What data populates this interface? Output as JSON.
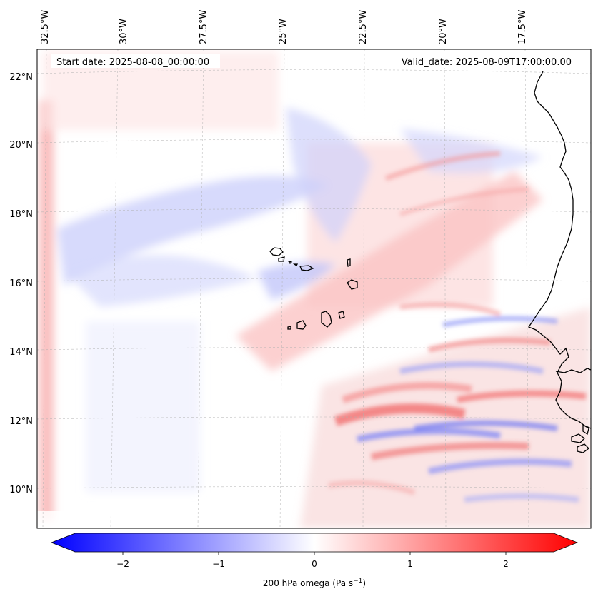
{
  "header": {
    "start_date": "Start date: 2025-08-08_00:00:00",
    "valid_date": "Valid_date: 2025-08-09T17:00:00.00"
  },
  "map": {
    "lon_labels": [
      "32.5°W",
      "30°W",
      "27.5°W",
      "25°W",
      "22.5°W",
      "20°W",
      "17.5°W"
    ],
    "lat_labels": [
      "22°N",
      "20°N",
      "18°N",
      "16°N",
      "14°N",
      "12°N",
      "10°N"
    ]
  },
  "colorbar": {
    "ticks": [
      "−2",
      "−1",
      "0",
      "1",
      "2"
    ],
    "tick_values": [
      -2,
      -1,
      0,
      1,
      2
    ],
    "range": [
      -2.5,
      2.5
    ],
    "label_main": "200 hPa omega (Pa s",
    "label_exp": "−1",
    "label_close": ")",
    "colors": {
      "negative": "#0000ff",
      "zero": "#ffffff",
      "positive": "#ff0000"
    }
  }
}
